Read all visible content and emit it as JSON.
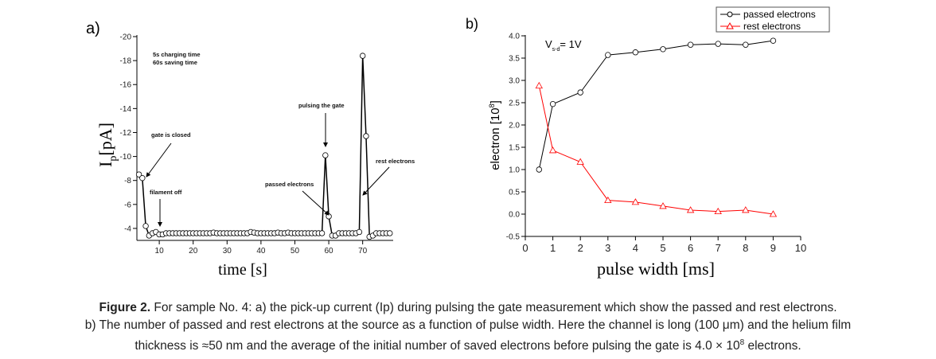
{
  "chart_data": [
    {
      "panel_label": "a)",
      "type": "line",
      "xlabel": "time [s]",
      "ylabel": "I",
      "ylabel_sub": "p",
      "ylabel_unit": "[pA]",
      "xlim": [
        3.4,
        79
      ],
      "ylim": [
        -3,
        -20
      ],
      "xticks": [
        10,
        20,
        30,
        40,
        50,
        60,
        70
      ],
      "yticks": [
        -4,
        -6,
        -8,
        -10,
        -12,
        -14,
        -16,
        -18,
        -20
      ],
      "series": [
        {
          "name": "Ip",
          "marker": "circle",
          "color": "#000000",
          "x": [
            4,
            5,
            6,
            7,
            8,
            9,
            10,
            11,
            12,
            13,
            14,
            15,
            16,
            17,
            18,
            19,
            20,
            21,
            22,
            23,
            24,
            25,
            26,
            27,
            28,
            29,
            30,
            31,
            32,
            33,
            34,
            35,
            36,
            37,
            38,
            39,
            40,
            41,
            42,
            43,
            44,
            45,
            46,
            47,
            48,
            49,
            50,
            51,
            52,
            53,
            54,
            55,
            56,
            57,
            58,
            59,
            60,
            61,
            62,
            63,
            64,
            65,
            66,
            67,
            68,
            69,
            70,
            71,
            72,
            73,
            74,
            75,
            76,
            77,
            78
          ],
          "y": [
            -8.5,
            -8.2,
            -4.2,
            -3.4,
            -3.6,
            -3.7,
            -3.5,
            -3.5,
            -3.6,
            -3.6,
            -3.6,
            -3.6,
            -3.6,
            -3.6,
            -3.6,
            -3.6,
            -3.6,
            -3.6,
            -3.6,
            -3.6,
            -3.6,
            -3.6,
            -3.65,
            -3.6,
            -3.6,
            -3.6,
            -3.6,
            -3.6,
            -3.6,
            -3.6,
            -3.6,
            -3.6,
            -3.6,
            -3.7,
            -3.65,
            -3.6,
            -3.6,
            -3.6,
            -3.6,
            -3.6,
            -3.6,
            -3.65,
            -3.6,
            -3.6,
            -3.65,
            -3.6,
            -3.6,
            -3.6,
            -3.6,
            -3.6,
            -3.6,
            -3.6,
            -3.6,
            -3.6,
            -3.6,
            -10.1,
            -5.0,
            -3.4,
            -3.4,
            -3.6,
            -3.6,
            -3.6,
            -3.6,
            -3.6,
            -3.6,
            -3.7,
            -18.4,
            -11.7,
            -3.3,
            -3.4,
            -3.6,
            -3.6,
            -3.6,
            -3.6,
            -3.6
          ]
        }
      ],
      "annotations": [
        "5s charging time",
        "60s saving time",
        "gate is closed",
        "filament off",
        "pulsing the gate",
        "passed electrons",
        "rest electrons"
      ]
    },
    {
      "panel_label": "b)",
      "type": "line",
      "xlabel": "pulse width [ms]",
      "ylabel": "electron [10",
      "ylabel_sup": "8",
      "ylabel_end": "]",
      "xlim": [
        0,
        10
      ],
      "ylim": [
        -0.5,
        4.0
      ],
      "xticks": [
        0,
        1,
        2,
        3,
        4,
        5,
        6,
        7,
        8,
        9,
        10
      ],
      "yticks": [
        "-0.5",
        "0.0",
        "0.5",
        "1.0",
        "1.5",
        "2.0",
        "2.5",
        "3.0",
        "3.5",
        "4.0"
      ],
      "annotation": {
        "text": "V",
        "sub": "s-d",
        "rest": "= 1V"
      },
      "legend_position": "top-right",
      "series": [
        {
          "name": "passed electrons",
          "marker": "circle",
          "color": "#000000",
          "x": [
            0.5,
            1,
            2,
            3,
            4,
            5,
            6,
            7,
            8,
            9
          ],
          "y": [
            1.0,
            2.47,
            2.73,
            3.57,
            3.63,
            3.7,
            3.8,
            3.82,
            3.8,
            3.89
          ]
        },
        {
          "name": "rest electrons",
          "marker": "triangle",
          "color": "#ff0000",
          "x": [
            0.5,
            1,
            2,
            3,
            4,
            5,
            6,
            7,
            8,
            9
          ],
          "y": [
            2.88,
            1.43,
            1.17,
            0.31,
            0.27,
            0.18,
            0.09,
            0.06,
            0.09,
            0.0
          ]
        }
      ]
    }
  ],
  "caption": {
    "label": "Figure 2.",
    "line1": " For sample No. 4: a) the pick-up current (Ip) during pulsing the gate measurement which show the passed and rest electrons.",
    "line2": "b) The number of passed and rest electrons at the source as a function of pulse width. Here the channel is long (100 μm) and the helium film",
    "line3_a": "thickness is ≈50 nm and the average of the initial number of saved electrons before pulsing the gate is 4.0 × 10",
    "line3_sup": "8",
    "line3_b": " electrons."
  }
}
